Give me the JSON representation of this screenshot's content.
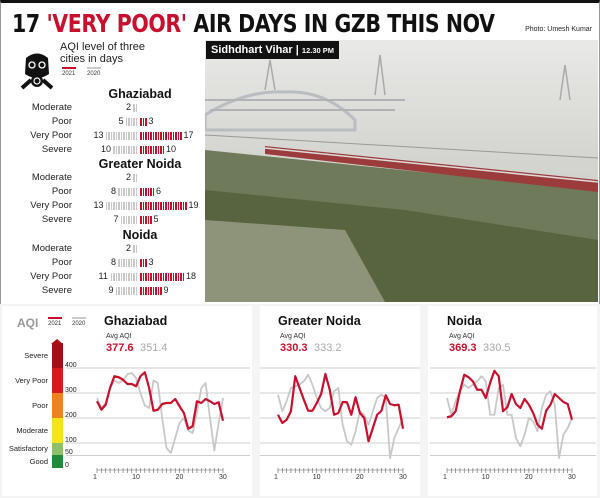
{
  "headline": {
    "pre": "17 ",
    "highlight": "'VERY POOR'",
    "post": " AIR DAYS IN GZB THIS NOV"
  },
  "photo_credit": "Photo: Umesh Kumar",
  "photo_caption": {
    "place": "Sidhdhart Vihar",
    "time": "12.30 PM"
  },
  "colors": {
    "y2021": "#c8102e",
    "y2020": "#c8c8c8"
  },
  "icon": "gas-mask-icon",
  "days_panel": {
    "title": "AQI level of three cities in days",
    "legend": [
      "2021",
      "2020"
    ],
    "row_labels": [
      "Moderate",
      "Poor",
      "Very Poor",
      "Severe"
    ]
  },
  "chart_data": [
    {
      "type": "bar",
      "title": "Ghaziabad",
      "categories": [
        "Moderate",
        "Poor",
        "Very Poor",
        "Severe"
      ],
      "series": [
        {
          "name": "2020",
          "values": [
            2,
            5,
            13,
            10
          ]
        },
        {
          "name": "2021",
          "values": [
            0,
            3,
            17,
            10
          ]
        }
      ]
    },
    {
      "type": "bar",
      "title": "Greater Noida",
      "categories": [
        "Moderate",
        "Poor",
        "Very Poor",
        "Severe"
      ],
      "series": [
        {
          "name": "2020",
          "values": [
            2,
            8,
            13,
            7
          ]
        },
        {
          "name": "2021",
          "values": [
            0,
            6,
            19,
            5
          ]
        }
      ]
    },
    {
      "type": "bar",
      "title": "Noida",
      "categories": [
        "Moderate",
        "Poor",
        "Very Poor",
        "Severe"
      ],
      "series": [
        {
          "name": "2020",
          "values": [
            2,
            8,
            11,
            9
          ]
        },
        {
          "name": "2021",
          "values": [
            0,
            3,
            18,
            9
          ]
        }
      ]
    },
    {
      "type": "line",
      "title": "Ghaziabad",
      "avg_label": "Avg AQI",
      "avg": {
        "2021": "377.6",
        "2020": "351.4"
      },
      "x": [
        1,
        2,
        3,
        4,
        5,
        6,
        7,
        8,
        9,
        10,
        11,
        12,
        13,
        14,
        15,
        16,
        17,
        18,
        19,
        20,
        21,
        22,
        23,
        24,
        25,
        26,
        27,
        28,
        29,
        30
      ],
      "xticks": [
        1,
        10,
        20,
        30
      ],
      "ylim": [
        0,
        450
      ],
      "series": [
        {
          "name": "2021",
          "values": [
            267,
            233,
            253,
            320,
            367,
            363,
            353,
            336,
            336,
            327,
            367,
            383,
            320,
            229,
            233,
            256,
            260,
            260,
            276,
            247,
            220,
            157,
            167,
            267,
            260,
            276,
            267,
            256,
            263,
            189
          ]
        },
        {
          "name": "2020",
          "values": [
            280,
            240,
            260,
            320,
            350,
            340,
            350,
            375,
            380,
            360,
            300,
            250,
            240,
            350,
            340,
            200,
            80,
            60,
            120,
            180,
            200,
            150,
            140,
            220,
            320,
            340,
            200,
            70,
            180,
            280
          ]
        }
      ]
    },
    {
      "type": "line",
      "title": "Greater Noida",
      "avg_label": "Avg AQI",
      "avg": {
        "2021": "330.3",
        "2020": "333.2"
      },
      "x": [
        1,
        2,
        3,
        4,
        5,
        6,
        7,
        8,
        9,
        10,
        11,
        12,
        13,
        14,
        15,
        16,
        17,
        18,
        19,
        20,
        21,
        22,
        23,
        24,
        25,
        26,
        27,
        28,
        29,
        30
      ],
      "xticks": [
        1,
        10,
        20,
        30
      ],
      "ylim": [
        0,
        450
      ],
      "series": [
        {
          "name": "2021",
          "values": [
            213,
            180,
            193,
            227,
            367,
            320,
            273,
            229,
            229,
            260,
            296,
            376,
            313,
            213,
            220,
            264,
            263,
            213,
            283,
            220,
            200,
            107,
            160,
            213,
            229,
            291,
            256,
            251,
            253,
            157
          ]
        },
        {
          "name": "2020",
          "values": [
            293,
            227,
            267,
            320,
            327,
            333,
            347,
            373,
            333,
            280,
            240,
            227,
            240,
            307,
            320,
            173,
            107,
            93,
            147,
            227,
            213,
            173,
            227,
            280,
            293,
            280,
            40,
            120,
            160,
            200
          ]
        }
      ]
    },
    {
      "type": "line",
      "title": "Noida",
      "avg_label": "Avg AQI",
      "avg": {
        "2021": "369.3",
        "2020": "330.5"
      },
      "x": [
        1,
        2,
        3,
        4,
        5,
        6,
        7,
        8,
        9,
        10,
        11,
        12,
        13,
        14,
        15,
        16,
        17,
        18,
        19,
        20,
        21,
        22,
        23,
        24,
        25,
        26,
        27,
        28,
        29,
        30
      ],
      "xticks": [
        1,
        10,
        20,
        30
      ],
      "ylim": [
        0,
        450
      ],
      "series": [
        {
          "name": "2021",
          "values": [
            203,
            207,
            227,
            307,
            373,
            363,
            347,
            313,
            313,
            280,
            340,
            389,
            367,
            227,
            243,
            296,
            256,
            240,
            276,
            253,
            220,
            173,
            157,
            229,
            253,
            296,
            280,
            264,
            256,
            193
          ]
        },
        {
          "name": "2020",
          "values": [
            280,
            213,
            267,
            307,
            333,
            320,
            333,
            347,
            367,
            347,
            213,
            213,
            320,
            333,
            213,
            213,
            120,
            87,
            133,
            200,
            187,
            147,
            240,
            293,
            307,
            253,
            40,
            133,
            160,
            200
          ]
        }
      ]
    }
  ],
  "aqi_scale": {
    "label": "AQI",
    "legend": [
      "2021",
      "2020"
    ],
    "bands": [
      {
        "name": "Severe",
        "color": "#a50f15"
      },
      {
        "name": "Very Poor",
        "color": "#d7191c"
      },
      {
        "name": "Poor",
        "color": "#f0821e"
      },
      {
        "name": "Moderate",
        "color": "#f5e31b"
      },
      {
        "name": "Satisfactory",
        "color": "#8dc26b"
      },
      {
        "name": "Good",
        "color": "#1f8a3a"
      }
    ],
    "ticks": [
      "400",
      "300",
      "200",
      "100",
      "50",
      "0"
    ]
  }
}
